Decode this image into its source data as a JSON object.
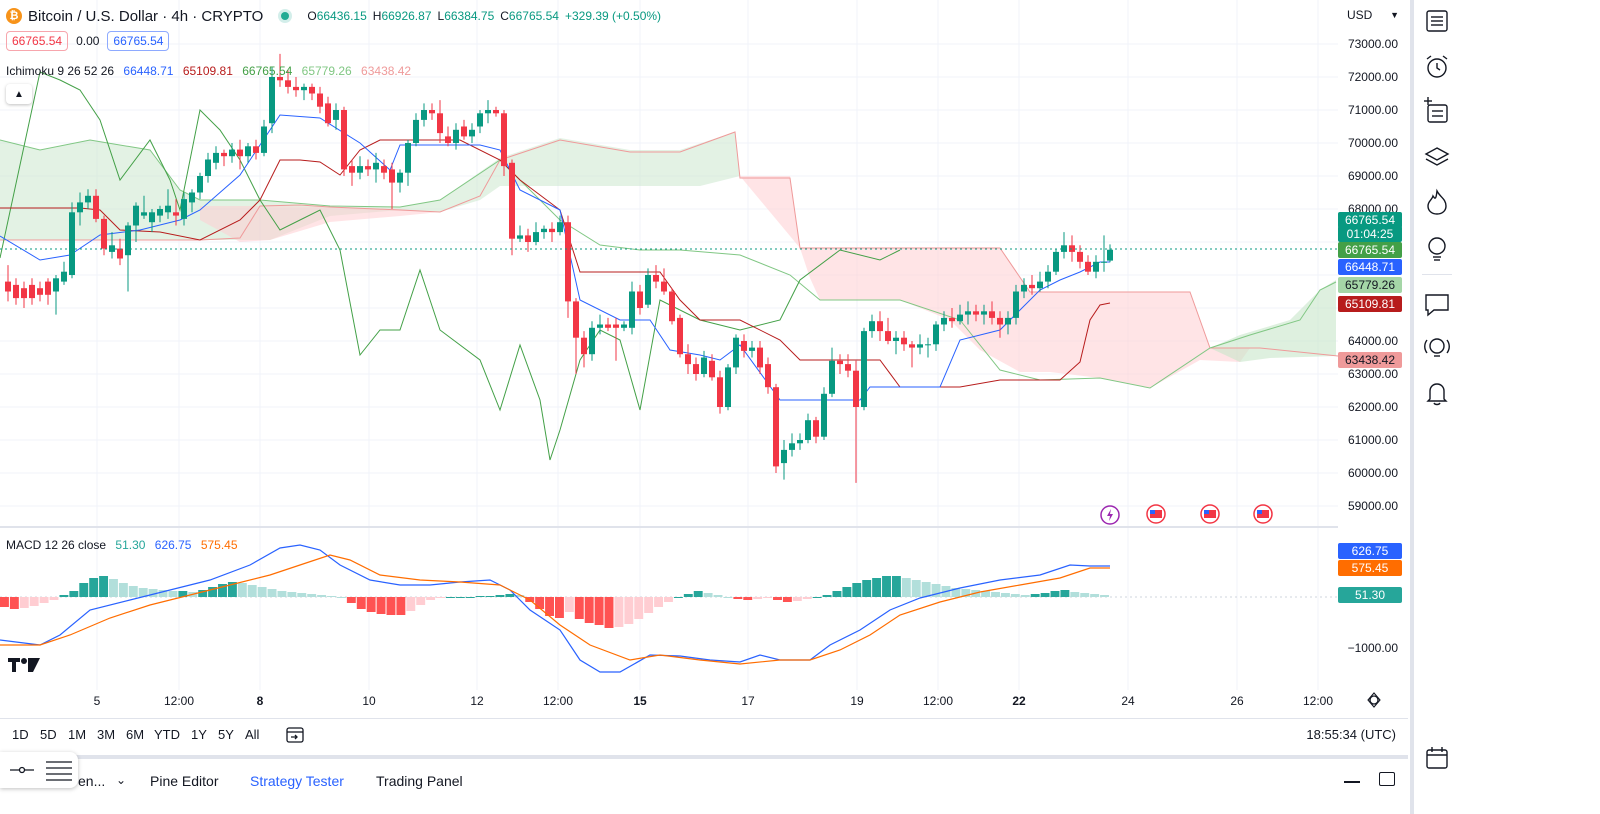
{
  "header": {
    "title": "Bitcoin / U.S. Dollar · 4h · CRYPTO",
    "open_key": "O",
    "open": "66436.15",
    "high_key": "H",
    "high": "66926.87",
    "low_key": "L",
    "low": "66384.75",
    "close_key": "C",
    "close": "66765.54",
    "change": "+329.39 (+0.50%)",
    "sell_price": "66765.54",
    "spread": "0.00",
    "buy_price": "66765.54",
    "collapse_icon": "chevron-up-icon"
  },
  "ichimoku": {
    "label": "Ichimoku 9 26 52 26",
    "conversion": "66448.71",
    "base": "65109.81",
    "lagging": "66765.54",
    "lead1": "65779.26",
    "lead2": "63438.42",
    "colors": {
      "conversion": "#2962ff",
      "base": "#b71c1c",
      "lagging": "#43a047",
      "lead1": "#81c784",
      "lead2": "#ef9a9a"
    }
  },
  "macd": {
    "label": "MACD 12 26 close",
    "histogram": "51.30",
    "macd": "626.75",
    "signal": "575.45",
    "colors": {
      "histogram": "#26a69a",
      "macd": "#2962ff",
      "signal": "#ff6d00"
    }
  },
  "price_scale": {
    "currency": "USD",
    "ticks": [
      "73000.00",
      "72000.00",
      "71000.00",
      "70000.00",
      "69000.00",
      "68000.00",
      "64000.00",
      "63000.00",
      "62000.00",
      "61000.00",
      "60000.00",
      "59000.00"
    ],
    "labels": [
      {
        "text": "66765.54",
        "color": "#089981"
      },
      {
        "text": "01:04:25",
        "color": "#089981"
      },
      {
        "text": "66765.54",
        "color": "#43a047"
      },
      {
        "text": "66448.71",
        "color": "#2962ff"
      },
      {
        "text": "65779.26",
        "color": "#a5d6a7"
      },
      {
        "text": "65109.81",
        "color": "#b71c1c"
      },
      {
        "text": "63438.42",
        "color": "#ef9a9a"
      }
    ],
    "macd_tick": "−1000.00",
    "macd_labels": [
      {
        "text": "626.75",
        "color": "#2962ff"
      },
      {
        "text": "575.45",
        "color": "#ff6d00"
      },
      {
        "text": "51.30",
        "color": "#26a69a"
      }
    ]
  },
  "time_axis": {
    "labels": [
      {
        "text": "5",
        "bold": false
      },
      {
        "text": "12:00",
        "bold": false
      },
      {
        "text": "8",
        "bold": true
      },
      {
        "text": "10",
        "bold": false
      },
      {
        "text": "12",
        "bold": false
      },
      {
        "text": "12:00",
        "bold": false
      },
      {
        "text": "15",
        "bold": true
      },
      {
        "text": "17",
        "bold": false
      },
      {
        "text": "19",
        "bold": false
      },
      {
        "text": "12:00",
        "bold": false
      },
      {
        "text": "22",
        "bold": true
      },
      {
        "text": "24",
        "bold": false
      },
      {
        "text": "26",
        "bold": false
      },
      {
        "text": "12:00",
        "bold": false
      }
    ],
    "settings_icon": "axis-settings-icon"
  },
  "range_bar": {
    "ranges": [
      "1D",
      "5D",
      "1M",
      "3M",
      "6M",
      "YTD",
      "1Y",
      "5Y",
      "All"
    ],
    "goto_icon": "calendar-goto-icon",
    "clock": "18:55:34 (UTC)"
  },
  "panel_bar": {
    "tabs": [
      {
        "label": "en...",
        "active": false
      },
      {
        "label": "Pine Editor",
        "active": false
      },
      {
        "label": "Strategy Tester",
        "active": true
      },
      {
        "label": "Trading Panel",
        "active": false
      }
    ]
  },
  "sidebar": {
    "icons": [
      "watchlist-icon",
      "alarm-clock-icon",
      "add-list-icon",
      "layers-icon",
      "hotlist-flame-icon",
      "ideas-lightbulb-icon",
      "chat-icon",
      "idea-stream-icon",
      "alerts-bell-icon",
      "calendar-icon"
    ]
  },
  "branding": {
    "logo": "tradingview-logo"
  },
  "events": [
    "earnings-flash-icon",
    "us-flag-event-icon",
    "us-flag-event-icon",
    "us-flag-event-icon"
  ]
}
